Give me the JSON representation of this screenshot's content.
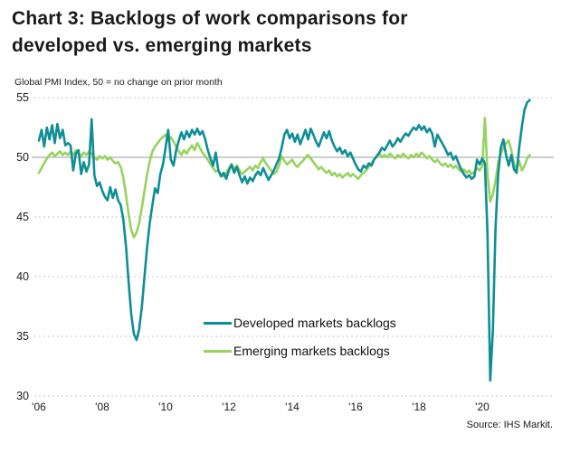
{
  "header": {
    "title_lines": [
      "Chart 3: Backlogs of work comparisons for",
      "developed vs. emerging markets"
    ]
  },
  "chart_data": {
    "type": "line",
    "title": "Chart 3: Backlogs of work comparisons for developed vs. emerging markets",
    "subtitle": "Global PMI Index, 50 = no change on prior month",
    "source": "Source: IHS Markit.",
    "x_unit": "monthly",
    "x_start": "2006-01",
    "x_end": "2021-07",
    "x_tick_labels": [
      "'06",
      "'08",
      "'10",
      "'12",
      "'14",
      "'16",
      "'18",
      "'20"
    ],
    "ylim": [
      30,
      55
    ],
    "y_ticks": [
      55,
      50,
      45,
      40,
      35,
      30
    ],
    "reference_line": 50,
    "grid": "horizontal dashed gridlines every 5; solid gray line at 50",
    "legend_position": "inside-bottom-center",
    "colors": {
      "developed": "#0E8E96",
      "emerging": "#97D35F"
    },
    "series": [
      {
        "name": "Developed markets backlogs",
        "color_key": "developed",
        "values": [
          51.4,
          52.3,
          50.9,
          52.5,
          51.5,
          52.7,
          51.2,
          52.8,
          51.6,
          52.3,
          51.0,
          51.2,
          51.0,
          48.9,
          50.3,
          50.6,
          48.6,
          49.6,
          48.8,
          49.4,
          53.2,
          48.5,
          47.6,
          47.9,
          47.2,
          46.7,
          46.4,
          47.5,
          46.6,
          47.3,
          46.4,
          46.0,
          44.8,
          42.5,
          39.5,
          36.8,
          35.2,
          34.7,
          35.6,
          37.5,
          40.0,
          42.5,
          44.5,
          46.0,
          47.4,
          47.0,
          48.6,
          49.4,
          50.8,
          52.3,
          49.8,
          49.3,
          50.6,
          51.4,
          52.1,
          51.5,
          52.2,
          51.7,
          52.3,
          51.9,
          52.4,
          51.9,
          52.2,
          51.5,
          50.6,
          49.9,
          49.3,
          50.4,
          48.9,
          48.4,
          48.7,
          48.2,
          48.9,
          49.4,
          48.7,
          49.2,
          48.5,
          47.9,
          48.4,
          47.8,
          48.3,
          48.0,
          48.5,
          48.8,
          48.5,
          49.1,
          48.6,
          48.1,
          48.5,
          48.9,
          49.4,
          49.9,
          50.8,
          51.9,
          52.3,
          51.6,
          52.0,
          51.3,
          51.9,
          51.1,
          51.7,
          52.3,
          51.5,
          52.4,
          51.9,
          51.3,
          50.9,
          51.5,
          52.1,
          51.6,
          52.2,
          51.4,
          50.9,
          50.5,
          50.8,
          50.3,
          50.6,
          50.1,
          50.4,
          49.9,
          49.4,
          49.0,
          48.8,
          49.3,
          49.1,
          49.5,
          49.3,
          49.8,
          50.1,
          50.4,
          50.8,
          50.6,
          51.0,
          51.4,
          50.9,
          51.2,
          51.6,
          51.3,
          51.7,
          52.0,
          51.8,
          52.2,
          52.5,
          52.3,
          52.7,
          52.3,
          52.6,
          52.1,
          52.4,
          52.0,
          50.9,
          51.9,
          51.5,
          51.1,
          50.7,
          50.2,
          50.4,
          49.8,
          50.1,
          49.5,
          49.0,
          48.6,
          48.3,
          48.5,
          48.2,
          48.4,
          49.8,
          49.4,
          49.9,
          49.5,
          43.5,
          31.3,
          35.5,
          44.0,
          48.5,
          50.8,
          51.5,
          50.2,
          49.3,
          50.2,
          49.0,
          48.7,
          50.8,
          52.6,
          54.0,
          54.6,
          54.8
        ]
      },
      {
        "name": "Emerging markets backlogs",
        "color_key": "emerging",
        "values": [
          48.7,
          49.1,
          49.5,
          49.9,
          50.2,
          50.4,
          50.1,
          50.3,
          50.5,
          50.2,
          50.4,
          50.2,
          50.5,
          50.2,
          50.6,
          50.3,
          50.1,
          50.4,
          50.2,
          50.5,
          50.3,
          50.0,
          49.8,
          50.1,
          49.9,
          50.1,
          49.8,
          50.0,
          49.7,
          49.5,
          49.6,
          49.2,
          48.3,
          46.8,
          45.2,
          43.9,
          43.3,
          43.7,
          44.5,
          45.8,
          47.2,
          48.6,
          49.7,
          50.5,
          50.9,
          51.2,
          51.5,
          51.7,
          51.9,
          51.4,
          51.7,
          51.3,
          50.9,
          50.5,
          50.2,
          50.6,
          50.3,
          50.7,
          51.0,
          50.6,
          51.2,
          50.8,
          50.4,
          50.1,
          49.8,
          49.4,
          49.1,
          48.8,
          48.9,
          48.6,
          48.4,
          48.7,
          49.1,
          49.4,
          49.0,
          49.3,
          48.9,
          48.6,
          48.8,
          49.0,
          49.2,
          48.9,
          49.3,
          49.1,
          49.6,
          49.9,
          49.5,
          49.2,
          48.9,
          48.6,
          48.8,
          49.3,
          50.1,
          49.7,
          49.4,
          49.6,
          49.8,
          49.4,
          49.2,
          49.5,
          49.7,
          50.0,
          50.2,
          49.9,
          49.6,
          49.3,
          49.0,
          49.2,
          48.9,
          48.7,
          48.9,
          48.5,
          48.7,
          48.4,
          48.6,
          48.3,
          48.5,
          48.7,
          48.4,
          48.6,
          48.4,
          48.2,
          48.5,
          48.7,
          48.9,
          49.2,
          49.5,
          49.8,
          50.1,
          50.3,
          50.0,
          50.2,
          50.0,
          50.3,
          50.1,
          49.9,
          50.2,
          50.0,
          50.3,
          50.1,
          49.9,
          50.2,
          50.0,
          50.3,
          50.1,
          50.4,
          50.2,
          49.9,
          50.1,
          49.8,
          49.6,
          49.8,
          49.5,
          49.3,
          49.5,
          49.2,
          49.4,
          49.1,
          49.3,
          49.0,
          48.8,
          49.0,
          48.7,
          48.9,
          48.6,
          48.8,
          49.1,
          48.9,
          49.3,
          53.3,
          48.5,
          46.3,
          46.9,
          48.0,
          49.5,
          50.3,
          50.8,
          51.2,
          51.4,
          50.6,
          49.5,
          49.0,
          49.7,
          48.9,
          49.3,
          49.9,
          50.2
        ]
      }
    ]
  }
}
